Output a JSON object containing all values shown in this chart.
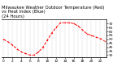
{
  "title": "Milwaukee Weather Outdoor Temperature (Red)\nvs Heat Index (Blue)\n(24 Hours)",
  "hours": [
    0,
    1,
    2,
    3,
    4,
    5,
    6,
    7,
    8,
    9,
    10,
    11,
    12,
    13,
    14,
    15,
    16,
    17,
    18,
    19,
    20,
    21,
    22,
    23
  ],
  "temp": [
    50,
    47,
    43,
    38,
    34,
    32,
    30,
    30,
    34,
    40,
    49,
    58,
    65,
    71,
    71,
    71,
    70,
    67,
    62,
    57,
    55,
    53,
    51,
    48
  ],
  "line_color_temp": "#ff0000",
  "bg_color": "#ffffff",
  "grid_color": "#888888",
  "ylim": [
    27,
    75
  ],
  "ytick_values": [
    30,
    35,
    40,
    45,
    50,
    55,
    60,
    65,
    70
  ],
  "ytick_labels": [
    "30",
    "35",
    "40",
    "45",
    "50",
    "55",
    "60",
    "65",
    "70"
  ],
  "xtick_positions": [
    0,
    2,
    4,
    6,
    8,
    10,
    12,
    14,
    16,
    18,
    20,
    22
  ],
  "xtick_labels": [
    "0",
    "2",
    "4",
    "6",
    "8",
    "10",
    "12",
    "14",
    "16",
    "18",
    "20",
    "22"
  ],
  "title_fontsize": 3.8,
  "tick_fontsize": 3.2,
  "linewidth": 0.7,
  "markersize": 1.5
}
